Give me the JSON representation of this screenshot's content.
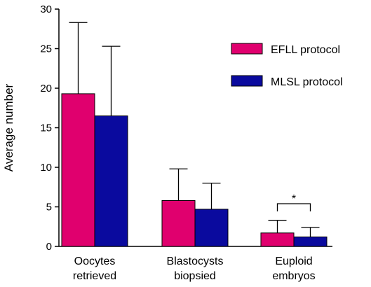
{
  "chart_data": {
    "type": "bar",
    "ylabel": "Average number",
    "ylim": [
      0,
      30
    ],
    "yticks": [
      0,
      5,
      10,
      15,
      20,
      25,
      30
    ],
    "grid": false,
    "legend_position": "top-right",
    "categories": [
      [
        "Oocytes",
        "retrieved"
      ],
      [
        "Blastocysts",
        "biopsied"
      ],
      [
        "Euploid",
        "embryos"
      ]
    ],
    "series": [
      {
        "name": "EFLL protocol",
        "color": "#e0006e",
        "values": [
          19.3,
          5.8,
          1.7
        ],
        "errors": [
          9.0,
          4.0,
          1.6
        ]
      },
      {
        "name": "MLSL protocol",
        "color": "#0a0a9e",
        "values": [
          16.5,
          4.7,
          1.2
        ],
        "errors": [
          8.8,
          3.3,
          1.2
        ]
      }
    ],
    "annotations": [
      {
        "category_index": 2,
        "text": "*"
      }
    ]
  }
}
